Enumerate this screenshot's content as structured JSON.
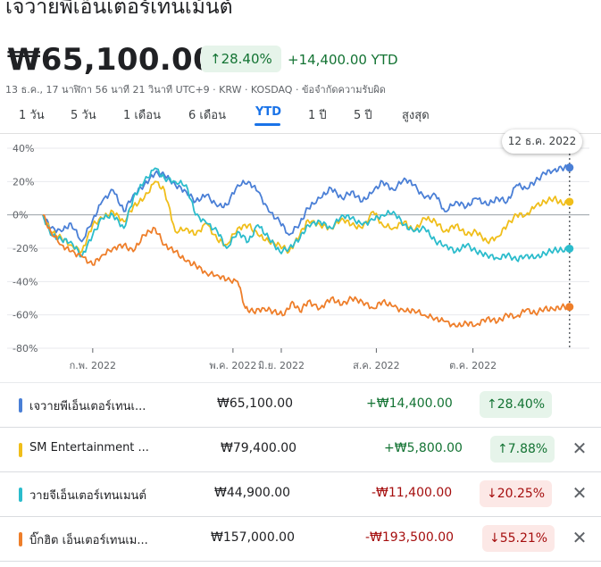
{
  "header": {
    "title": "เจวายพีเอ็นเตอร์เทนเม้นต์",
    "price": "₩65,100.00",
    "change_pct_badge": "↑28.40%",
    "change_abs": "+14,400.00 YTD",
    "meta": "13 ธ.ค., 17 นาฬิกา 56 นาที 21 วินาที UTC+9 · KRW · KOSDAQ · ข้อจำกัดความรับผิด"
  },
  "tabs": [
    {
      "label": "1 วัน"
    },
    {
      "label": "5 วัน"
    },
    {
      "label": "1 เดือน"
    },
    {
      "label": "6 เดือน"
    },
    {
      "label": "YTD",
      "active": true
    },
    {
      "label": "1 ปี"
    },
    {
      "label": "5 ปี"
    },
    {
      "label": "สูงสุด"
    }
  ],
  "tooltip": "12 ธ.ค. 2022",
  "colors": {
    "jyp": "#4a7fd6",
    "sm": "#f0be1a",
    "yg": "#2bbccc",
    "bighit": "#ee7e2a",
    "positive": "#137333",
    "negative": "#a50e0e",
    "accent": "#1a73e8"
  },
  "chart_data": {
    "type": "line",
    "y_ticks": [
      "40%",
      "20%",
      "0%",
      "-20%",
      "-40%",
      "-60%",
      "-80%"
    ],
    "y_values": [
      40,
      20,
      0,
      -20,
      -40,
      -60,
      -80
    ],
    "ylim": [
      -80,
      40
    ],
    "x_ticks": [
      "ก.พ. 2022",
      "พ.ค. 2022",
      "มิ.ย. 2022",
      "ส.ค. 2022",
      "ต.ค. 2022"
    ],
    "x_tick_days": [
      32,
      122,
      153,
      214,
      276
    ],
    "xlim": [
      0,
      345
    ],
    "series": [
      {
        "key": "jyp",
        "values": [
          [
            0,
            0
          ],
          [
            5,
            -8
          ],
          [
            12,
            -10
          ],
          [
            18,
            -5
          ],
          [
            25,
            -16
          ],
          [
            32,
            -3
          ],
          [
            38,
            8
          ],
          [
            45,
            15
          ],
          [
            52,
            2
          ],
          [
            58,
            12
          ],
          [
            65,
            18
          ],
          [
            72,
            25
          ],
          [
            78,
            24
          ],
          [
            85,
            18
          ],
          [
            92,
            14
          ],
          [
            98,
            8
          ],
          [
            105,
            12
          ],
          [
            112,
            5
          ],
          [
            118,
            6
          ],
          [
            125,
            18
          ],
          [
            132,
            20
          ],
          [
            138,
            14
          ],
          [
            145,
            2
          ],
          [
            152,
            -4
          ],
          [
            158,
            -12
          ],
          [
            165,
            -5
          ],
          [
            170,
            4
          ],
          [
            178,
            10
          ],
          [
            185,
            16
          ],
          [
            192,
            10
          ],
          [
            198,
            14
          ],
          [
            205,
            8
          ],
          [
            212,
            14
          ],
          [
            218,
            20
          ],
          [
            225,
            15
          ],
          [
            232,
            22
          ],
          [
            238,
            18
          ],
          [
            245,
            10
          ],
          [
            252,
            12
          ],
          [
            258,
            2
          ],
          [
            265,
            8
          ],
          [
            272,
            5
          ],
          [
            278,
            10
          ],
          [
            285,
            6
          ],
          [
            292,
            10
          ],
          [
            298,
            8
          ],
          [
            304,
            18
          ],
          [
            310,
            16
          ],
          [
            316,
            20
          ],
          [
            322,
            25
          ],
          [
            328,
            27
          ],
          [
            333,
            28
          ],
          [
            338,
            28.4
          ]
        ]
      },
      {
        "key": "sm",
        "values": [
          [
            0,
            0
          ],
          [
            5,
            -10
          ],
          [
            12,
            -14
          ],
          [
            18,
            -18
          ],
          [
            25,
            -22
          ],
          [
            32,
            -6
          ],
          [
            38,
            -2
          ],
          [
            45,
            2
          ],
          [
            52,
            -4
          ],
          [
            58,
            5
          ],
          [
            65,
            10
          ],
          [
            72,
            20
          ],
          [
            78,
            15
          ],
          [
            85,
            -10
          ],
          [
            92,
            -8
          ],
          [
            98,
            -12
          ],
          [
            105,
            -5
          ],
          [
            112,
            -15
          ],
          [
            118,
            -18
          ],
          [
            125,
            -8
          ],
          [
            132,
            -6
          ],
          [
            138,
            -12
          ],
          [
            145,
            -16
          ],
          [
            152,
            -18
          ],
          [
            158,
            -22
          ],
          [
            165,
            -12
          ],
          [
            170,
            -3
          ],
          [
            178,
            -6
          ],
          [
            185,
            -8
          ],
          [
            192,
            -2
          ],
          [
            198,
            -6
          ],
          [
            205,
            -8
          ],
          [
            212,
            2
          ],
          [
            218,
            -6
          ],
          [
            225,
            -8
          ],
          [
            232,
            -4
          ],
          [
            238,
            -10
          ],
          [
            245,
            -2
          ],
          [
            252,
            -4
          ],
          [
            258,
            -10
          ],
          [
            265,
            -6
          ],
          [
            272,
            -12
          ],
          [
            278,
            -10
          ],
          [
            285,
            -16
          ],
          [
            292,
            -13
          ],
          [
            298,
            -6
          ],
          [
            304,
            0
          ],
          [
            310,
            0
          ],
          [
            316,
            5
          ],
          [
            322,
            8
          ],
          [
            328,
            10
          ],
          [
            333,
            7
          ],
          [
            338,
            7.88
          ]
        ]
      },
      {
        "key": "yg",
        "values": [
          [
            0,
            0
          ],
          [
            5,
            -12
          ],
          [
            12,
            -15
          ],
          [
            18,
            -16
          ],
          [
            25,
            -25
          ],
          [
            32,
            -12
          ],
          [
            38,
            -2
          ],
          [
            45,
            0
          ],
          [
            52,
            -8
          ],
          [
            58,
            10
          ],
          [
            65,
            20
          ],
          [
            72,
            28
          ],
          [
            78,
            22
          ],
          [
            85,
            20
          ],
          [
            92,
            18
          ],
          [
            98,
            0
          ],
          [
            105,
            -5
          ],
          [
            112,
            -10
          ],
          [
            118,
            -20
          ],
          [
            125,
            -10
          ],
          [
            132,
            -16
          ],
          [
            138,
            -6
          ],
          [
            145,
            -14
          ],
          [
            152,
            -22
          ],
          [
            158,
            -20
          ],
          [
            165,
            -14
          ],
          [
            170,
            -6
          ],
          [
            178,
            -4
          ],
          [
            185,
            -8
          ],
          [
            192,
            0
          ],
          [
            198,
            -2
          ],
          [
            205,
            -6
          ],
          [
            212,
            -3
          ],
          [
            218,
            0
          ],
          [
            225,
            2
          ],
          [
            232,
            -6
          ],
          [
            238,
            -10
          ],
          [
            245,
            -8
          ],
          [
            252,
            -16
          ],
          [
            258,
            -18
          ],
          [
            265,
            -22
          ],
          [
            272,
            -18
          ],
          [
            278,
            -22
          ],
          [
            285,
            -24
          ],
          [
            292,
            -26
          ],
          [
            298,
            -24
          ],
          [
            304,
            -27
          ],
          [
            310,
            -24
          ],
          [
            316,
            -26
          ],
          [
            322,
            -23
          ],
          [
            328,
            -21
          ],
          [
            333,
            -21
          ],
          [
            338,
            -20.25
          ]
        ]
      },
      {
        "key": "bighit",
        "values": [
          [
            0,
            0
          ],
          [
            5,
            -10
          ],
          [
            12,
            -18
          ],
          [
            18,
            -22
          ],
          [
            25,
            -25
          ],
          [
            32,
            -30
          ],
          [
            38,
            -24
          ],
          [
            45,
            -20
          ],
          [
            52,
            -18
          ],
          [
            58,
            -22
          ],
          [
            65,
            -12
          ],
          [
            72,
            -8
          ],
          [
            78,
            -18
          ],
          [
            85,
            -22
          ],
          [
            92,
            -28
          ],
          [
            98,
            -30
          ],
          [
            105,
            -35
          ],
          [
            112,
            -36
          ],
          [
            118,
            -39
          ],
          [
            125,
            -40
          ],
          [
            130,
            -56
          ],
          [
            135,
            -58
          ],
          [
            142,
            -56
          ],
          [
            148,
            -58
          ],
          [
            155,
            -60
          ],
          [
            160,
            -52
          ],
          [
            165,
            -58
          ],
          [
            170,
            -52
          ],
          [
            178,
            -56
          ],
          [
            185,
            -50
          ],
          [
            192,
            -54
          ],
          [
            198,
            -50
          ],
          [
            205,
            -52
          ],
          [
            212,
            -56
          ],
          [
            218,
            -52
          ],
          [
            225,
            -55
          ],
          [
            232,
            -58
          ],
          [
            238,
            -57
          ],
          [
            245,
            -60
          ],
          [
            252,
            -62
          ],
          [
            258,
            -64
          ],
          [
            265,
            -67
          ],
          [
            272,
            -65
          ],
          [
            278,
            -66
          ],
          [
            285,
            -62
          ],
          [
            292,
            -64
          ],
          [
            298,
            -60
          ],
          [
            304,
            -61
          ],
          [
            310,
            -57
          ],
          [
            316,
            -59
          ],
          [
            322,
            -56
          ],
          [
            328,
            -57
          ],
          [
            333,
            -55
          ],
          [
            338,
            -55.21
          ]
        ]
      }
    ]
  },
  "rows": [
    {
      "key": "jyp",
      "name": "เจวายพีเอ็นเตอร์เทนเ...",
      "price": "₩65,100.00",
      "change": "+₩14,400.00",
      "badge": "↑28.40%",
      "dir": "up",
      "removable": false
    },
    {
      "key": "sm",
      "name": "SM Entertainment ...",
      "price": "₩79,400.00",
      "change": "+₩5,800.00",
      "badge": "↑7.88%",
      "dir": "up",
      "removable": true
    },
    {
      "key": "yg",
      "name": "วายจีเอ็นเตอร์เทนเมนต์",
      "price": "₩44,900.00",
      "change": "-₩11,400.00",
      "badge": "↓20.25%",
      "dir": "down",
      "removable": true
    },
    {
      "key": "bighit",
      "name": "บิ๊กฮิต เอ็นเตอร์เทนเม...",
      "price": "₩157,000.00",
      "change": "-₩193,500.00",
      "badge": "↓55.21%",
      "dir": "down",
      "removable": true
    }
  ]
}
